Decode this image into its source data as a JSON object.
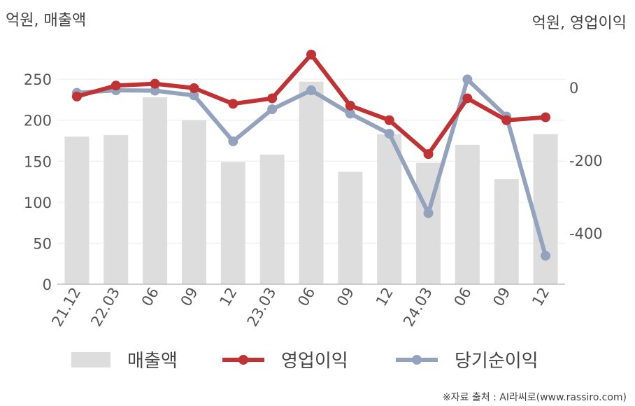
{
  "chart_data": {
    "type": "bar+line",
    "left_axis_unit": "억원, 매출액",
    "right_axis_unit": "억원, 영업이익",
    "categories": [
      "21.12",
      "22.03",
      "06",
      "09",
      "12",
      "23.03",
      "06",
      "09",
      "12",
      "24.03",
      "06",
      "09",
      "12"
    ],
    "left_ylim": [
      0,
      280
    ],
    "left_ticks": [
      "0",
      "50",
      "100",
      "150",
      "200",
      "250"
    ],
    "right_ylim": [
      -540,
      90
    ],
    "right_ticks": [
      "0",
      "-200",
      "-400"
    ],
    "series": [
      {
        "name": "매출액",
        "type": "bar",
        "axis": "left",
        "color": "#dddddd",
        "values": [
          180,
          182,
          228,
          200,
          149,
          158,
          247,
          137,
          183,
          148,
          170,
          128,
          183
        ]
      },
      {
        "name": "영업이익",
        "type": "line",
        "axis": "right",
        "color": "#c03233",
        "values": [
          -25,
          5,
          10,
          -2,
          -45,
          -30,
          90,
          -50,
          -90,
          -183,
          -30,
          -90,
          -82
        ]
      },
      {
        "name": "당기순이익",
        "type": "line",
        "axis": "right",
        "color": "#94a3bd",
        "values": [
          -15,
          -8,
          -9,
          -22,
          -148,
          -60,
          -8,
          -72,
          -127,
          -345,
          22,
          -80,
          -462
        ]
      }
    ],
    "grid": true,
    "legend_position": "bottom"
  },
  "source_text": "※자료 출처 : AI라씨로(www.rassiro.com)"
}
